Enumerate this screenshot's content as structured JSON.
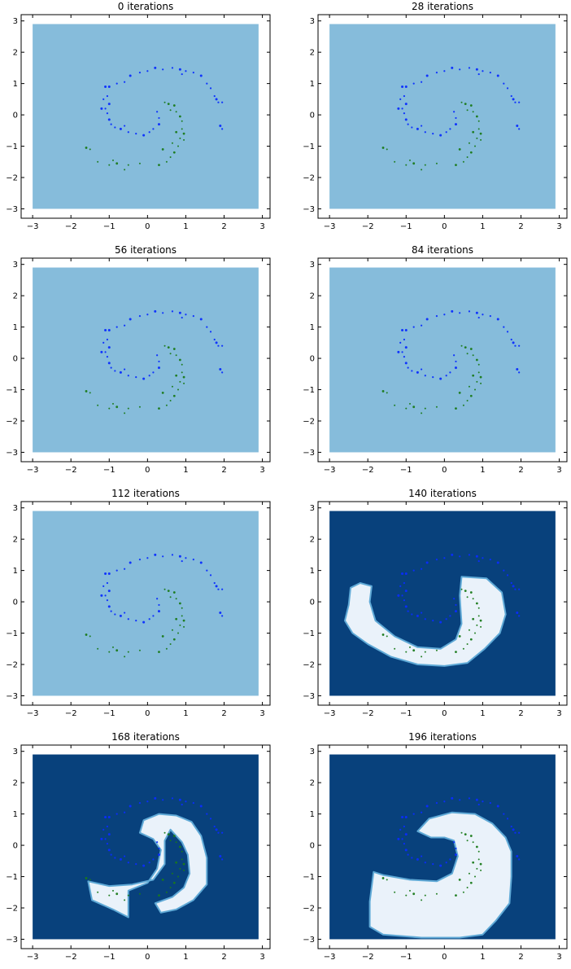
{
  "chart_data": [
    {
      "type": "scatter",
      "title": "0 iterations",
      "region": "none",
      "xlim": [
        -3.3,
        3.2
      ],
      "ylim": [
        -3.3,
        3.2
      ],
      "xticks": [
        "−3",
        "−2",
        "−1",
        "0",
        "1",
        "2",
        "3"
      ],
      "yticks": [
        "3",
        "2",
        "1",
        "0",
        "−1",
        "−2",
        "−3"
      ],
      "background_color": "#86bcdb",
      "region_color": "#eaf2fa",
      "outer_color": "#08417c"
    },
    {
      "type": "scatter",
      "title": "28 iterations",
      "region": "none",
      "xlim": [
        -3.3,
        3.2
      ],
      "ylim": [
        -3.3,
        3.2
      ],
      "xticks": [
        "−3",
        "−2",
        "−1",
        "0",
        "1",
        "2",
        "3"
      ],
      "yticks": [
        "3",
        "2",
        "1",
        "0",
        "−1",
        "−2",
        "−3"
      ],
      "background_color": "#86bcdb",
      "region_color": "#eaf2fa",
      "outer_color": "#08417c"
    },
    {
      "type": "scatter",
      "title": "56 iterations",
      "region": "none",
      "xlim": [
        -3.3,
        3.2
      ],
      "ylim": [
        -3.3,
        3.2
      ],
      "xticks": [
        "−3",
        "−2",
        "−1",
        "0",
        "1",
        "2",
        "3"
      ],
      "yticks": [
        "3",
        "2",
        "1",
        "0",
        "−1",
        "−2",
        "−3"
      ],
      "background_color": "#86bcdb",
      "region_color": "#eaf2fa",
      "outer_color": "#08417c"
    },
    {
      "type": "scatter",
      "title": "84 iterations",
      "region": "none",
      "xlim": [
        -3.3,
        3.2
      ],
      "ylim": [
        -3.3,
        3.2
      ],
      "xticks": [
        "−3",
        "−2",
        "−1",
        "0",
        "1",
        "2",
        "3"
      ],
      "yticks": [
        "3",
        "2",
        "1",
        "0",
        "−1",
        "−2",
        "−3"
      ],
      "background_color": "#86bcdb",
      "region_color": "#eaf2fa",
      "outer_color": "#08417c"
    },
    {
      "type": "scatter",
      "title": "112 iterations",
      "region": "none",
      "xlim": [
        -3.3,
        3.2
      ],
      "ylim": [
        -3.3,
        3.2
      ],
      "xticks": [
        "−3",
        "−2",
        "−1",
        "0",
        "1",
        "2",
        "3"
      ],
      "yticks": [
        "3",
        "2",
        "1",
        "0",
        "−1",
        "−2",
        "−3"
      ],
      "background_color": "#86bcdb",
      "region_color": "#eaf2fa",
      "outer_color": "#08417c"
    },
    {
      "type": "scatter",
      "title": "140 iterations",
      "region": "r140",
      "xlim": [
        -3.3,
        3.2
      ],
      "ylim": [
        -3.3,
        3.2
      ],
      "xticks": [
        "−3",
        "−2",
        "−1",
        "0",
        "1",
        "2",
        "3"
      ],
      "yticks": [
        "3",
        "2",
        "1",
        "0",
        "−1",
        "−2",
        "−3"
      ],
      "background_color": "#86bcdb",
      "region_color": "#eaf2fa",
      "outer_color": "#08417c"
    },
    {
      "type": "scatter",
      "title": "168 iterations",
      "region": "r168",
      "xlim": [
        -3.3,
        3.2
      ],
      "ylim": [
        -3.3,
        3.2
      ],
      "xticks": [
        "−3",
        "−2",
        "−1",
        "0",
        "1",
        "2",
        "3"
      ],
      "yticks": [
        "3",
        "2",
        "1",
        "0",
        "−1",
        "−2",
        "−3"
      ],
      "background_color": "#86bcdb",
      "region_color": "#eaf2fa",
      "outer_color": "#08417c"
    },
    {
      "type": "scatter",
      "title": "196 iterations",
      "region": "r196",
      "xlim": [
        -3.3,
        3.2
      ],
      "ylim": [
        -3.3,
        3.2
      ],
      "xticks": [
        "−3",
        "−2",
        "−1",
        "0",
        "1",
        "2",
        "3"
      ],
      "yticks": [
        "3",
        "2",
        "1",
        "0",
        "−1",
        "−2",
        "−3"
      ],
      "background_color": "#86bcdb",
      "region_color": "#eaf2fa",
      "outer_color": "#08417c"
    }
  ],
  "regions": {
    "r140": [
      [
        -2.6,
        -0.6
      ],
      [
        -2.5,
        -0.1
      ],
      [
        -2.45,
        0.45
      ],
      [
        -2.2,
        0.6
      ],
      [
        -1.9,
        0.5
      ],
      [
        -1.95,
        0.0
      ],
      [
        -1.8,
        -0.6
      ],
      [
        -1.3,
        -1.1
      ],
      [
        -0.7,
        -1.45
      ],
      [
        -0.1,
        -1.5
      ],
      [
        0.3,
        -1.2
      ],
      [
        0.45,
        -0.7
      ],
      [
        0.4,
        0.2
      ],
      [
        0.45,
        0.8
      ],
      [
        1.1,
        0.75
      ],
      [
        1.5,
        0.3
      ],
      [
        1.6,
        -0.4
      ],
      [
        1.45,
        -1.0
      ],
      [
        1.05,
        -1.5
      ],
      [
        0.6,
        -1.95
      ],
      [
        0.0,
        -2.05
      ],
      [
        -0.7,
        -2.0
      ],
      [
        -1.4,
        -1.75
      ],
      [
        -2.0,
        -1.35
      ],
      [
        -2.4,
        -1.0
      ]
    ],
    "r168": [
      [
        -1.55,
        -1.15
      ],
      [
        -1.0,
        -1.3
      ],
      [
        -0.4,
        -1.25
      ],
      [
        0.15,
        -1.1
      ],
      [
        0.45,
        -0.6
      ],
      [
        0.45,
        0.15
      ],
      [
        0.6,
        0.5
      ],
      [
        0.9,
        0.1
      ],
      [
        1.05,
        -0.3
      ],
      [
        1.1,
        -0.9
      ],
      [
        0.95,
        -1.35
      ],
      [
        0.65,
        -1.65
      ],
      [
        0.2,
        -1.85
      ],
      [
        0.35,
        -2.15
      ],
      [
        0.75,
        -2.05
      ],
      [
        1.2,
        -1.75
      ],
      [
        1.55,
        -1.25
      ],
      [
        1.55,
        -0.4
      ],
      [
        1.4,
        0.3
      ],
      [
        1.15,
        0.75
      ],
      [
        0.75,
        0.95
      ],
      [
        0.3,
        1.0
      ],
      [
        -0.1,
        0.8
      ],
      [
        -0.2,
        0.4
      ],
      [
        0.15,
        0.2
      ],
      [
        0.35,
        -0.15
      ],
      [
        0.25,
        -0.75
      ],
      [
        0.0,
        -1.2
      ],
      [
        -0.5,
        -1.45
      ],
      [
        -0.5,
        -2.3
      ],
      [
        -0.9,
        -2.05
      ],
      [
        -1.45,
        -1.75
      ]
    ],
    "r196": [
      [
        -1.85,
        -0.85
      ],
      [
        -1.6,
        -0.95
      ],
      [
        -0.9,
        -1.1
      ],
      [
        -0.2,
        -1.15
      ],
      [
        0.2,
        -0.9
      ],
      [
        0.35,
        -0.35
      ],
      [
        0.25,
        0.15
      ],
      [
        0.0,
        0.25
      ],
      [
        -0.35,
        0.25
      ],
      [
        -0.7,
        0.45
      ],
      [
        -0.4,
        0.85
      ],
      [
        0.2,
        1.05
      ],
      [
        0.8,
        1.0
      ],
      [
        1.25,
        0.7
      ],
      [
        1.6,
        0.25
      ],
      [
        1.75,
        -0.2
      ],
      [
        1.75,
        -1.0
      ],
      [
        1.7,
        -1.85
      ],
      [
        1.35,
        -2.4
      ],
      [
        1.0,
        -2.85
      ],
      [
        0.4,
        -2.95
      ],
      [
        -0.6,
        -2.95
      ],
      [
        -1.6,
        -2.85
      ],
      [
        -1.95,
        -2.6
      ],
      [
        -1.95,
        -1.8
      ]
    ]
  },
  "points": {
    "blue": [
      [
        -1.1,
        0.9
      ],
      [
        -1.05,
        0.6
      ],
      [
        -1.15,
        0.5
      ],
      [
        -1.0,
        0.35
      ],
      [
        -1.1,
        0.2
      ],
      [
        -1.05,
        0.05
      ],
      [
        -1.0,
        -0.15
      ],
      [
        -0.95,
        -0.3
      ],
      [
        -0.85,
        -0.4
      ],
      [
        -0.7,
        -0.45
      ],
      [
        -0.5,
        -0.55
      ],
      [
        -0.3,
        -0.6
      ],
      [
        -0.1,
        -0.65
      ],
      [
        0.05,
        -0.55
      ],
      [
        0.15,
        -0.45
      ],
      [
        0.3,
        -0.3
      ],
      [
        0.3,
        -0.1
      ],
      [
        0.25,
        0.1
      ],
      [
        -1.0,
        0.9
      ],
      [
        -0.8,
        1.0
      ],
      [
        -0.6,
        1.05
      ],
      [
        -0.45,
        1.25
      ],
      [
        -0.2,
        1.35
      ],
      [
        0.0,
        1.4
      ],
      [
        0.2,
        1.5
      ],
      [
        0.4,
        1.45
      ],
      [
        0.65,
        1.5
      ],
      [
        0.85,
        1.45
      ],
      [
        1.0,
        1.4
      ],
      [
        1.2,
        1.35
      ],
      [
        1.4,
        1.25
      ],
      [
        1.55,
        1.0
      ],
      [
        1.65,
        0.85
      ],
      [
        1.8,
        0.5
      ],
      [
        1.85,
        0.4
      ],
      [
        1.95,
        0.4
      ],
      [
        1.9,
        -0.35
      ],
      [
        1.95,
        -0.45
      ],
      [
        1.75,
        0.6
      ],
      [
        -1.2,
        0.2
      ],
      [
        -0.6,
        -0.35
      ],
      [
        0.9,
        1.3
      ]
    ],
    "green": [
      [
        0.55,
        0.35
      ],
      [
        0.6,
        0.15
      ],
      [
        0.75,
        0.1
      ],
      [
        0.85,
        -0.05
      ],
      [
        0.9,
        -0.2
      ],
      [
        0.9,
        -0.45
      ],
      [
        0.95,
        -0.6
      ],
      [
        0.85,
        -0.75
      ],
      [
        0.8,
        -1.0
      ],
      [
        0.7,
        -1.2
      ],
      [
        0.6,
        -1.35
      ],
      [
        0.5,
        -1.5
      ],
      [
        0.3,
        -1.6
      ],
      [
        -0.2,
        -1.55
      ],
      [
        -0.5,
        -1.6
      ],
      [
        -0.8,
        -1.55
      ],
      [
        -1.0,
        -1.6
      ],
      [
        -1.3,
        -1.5
      ],
      [
        -1.6,
        -1.05
      ],
      [
        -1.5,
        -1.1
      ],
      [
        0.45,
        0.4
      ],
      [
        0.7,
        0.3
      ],
      [
        0.95,
        -0.8
      ],
      [
        0.65,
        -0.9
      ],
      [
        0.4,
        -1.1
      ],
      [
        -0.9,
        -1.45
      ],
      [
        -0.6,
        -1.75
      ],
      [
        0.75,
        -0.55
      ]
    ]
  }
}
